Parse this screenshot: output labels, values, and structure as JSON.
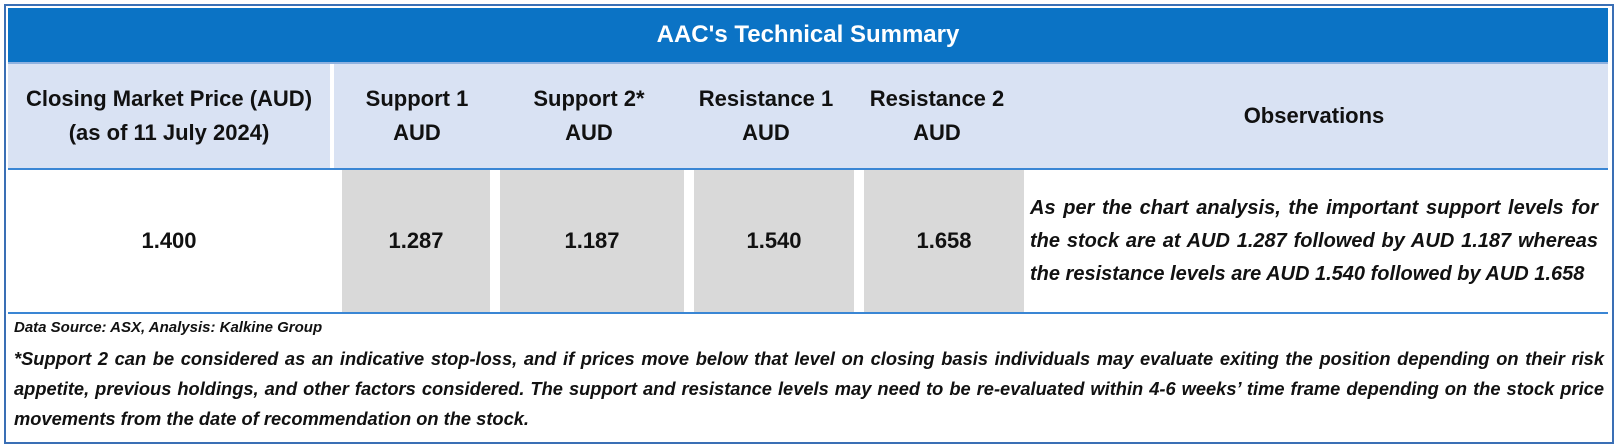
{
  "table": {
    "title": "AAC's Technical Summary",
    "headers": [
      {
        "line1": "Closing Market Price (AUD)",
        "line2": "(as of 11 July 2024)"
      },
      {
        "line1": "Support 1",
        "line2": "AUD"
      },
      {
        "line1": "Support 2*",
        "line2": "AUD"
      },
      {
        "line1": "Resistance 1",
        "line2": "AUD"
      },
      {
        "line1": "Resistance 2",
        "line2": "AUD"
      },
      {
        "line1": "Observations",
        "line2": ""
      }
    ],
    "values": {
      "closing_price": "1.400",
      "support_1": "1.287",
      "support_2": "1.187",
      "resistance_1": "1.540",
      "resistance_2": "1.658"
    },
    "observations": "As per the chart analysis, the important support levels for the stock are at AUD 1.287 followed by AUD 1.187 whereas the resistance levels are AUD 1.540 followed by AUD 1.658"
  },
  "footer": {
    "source": "Data Source: ASX, Analysis: Kalkine Group",
    "disclaimer": "*Support 2 can be considered as an indicative stop-loss, and if prices move below that level on closing basis individuals may evaluate exiting the position depending on their risk appetite, previous holdings, and other factors considered. The support and resistance levels may need to be re-evaluated within 4-6 weeks’ time frame depending on the stock price movements from the date of recommendation on the stock."
  }
}
